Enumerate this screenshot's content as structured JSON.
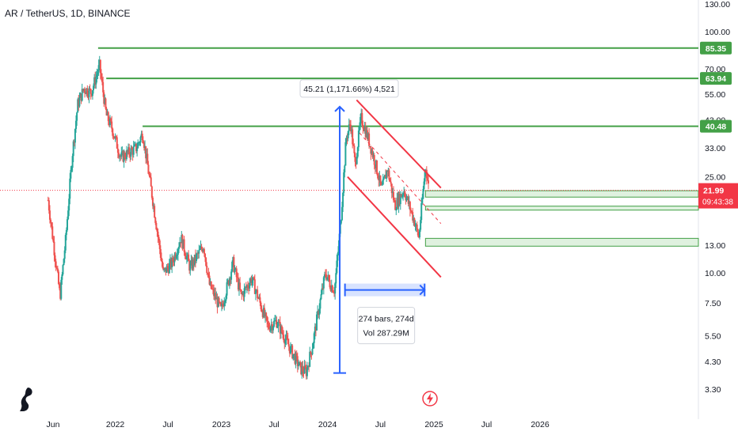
{
  "header": {
    "title": "AR / TetherUS, 1D, BINANCE"
  },
  "chart_data": {
    "type": "candlestick",
    "symbol": "AR / TetherUS",
    "interval": "1D",
    "exchange": "BINANCE",
    "y_scale": "log",
    "ylim": [
      3.0,
      135.0
    ],
    "y_ticks": [
      "130.00",
      "100.00",
      "70.00",
      "55.00",
      "43.00",
      "33.00",
      "25.00",
      "13.00",
      "10.00",
      "7.50",
      "5.50",
      "4.30",
      "3.30"
    ],
    "x_ticks": [
      "Jun",
      "2022",
      "Jul",
      "2023",
      "Jul",
      "2024",
      "Jul",
      "2025",
      "Jul",
      "2026"
    ],
    "current_price": {
      "value": "21.99",
      "countdown": "09:43:38",
      "color": "#f23645"
    },
    "horizontal_levels": [
      {
        "label": "85.35",
        "color": "#43a047"
      },
      {
        "label": "63.94",
        "color": "#43a047"
      },
      {
        "label": "40.48",
        "color": "#43a047"
      }
    ],
    "support_zones": [
      {
        "from": 20.6,
        "to": 21.9
      },
      {
        "from": 18.2,
        "to": 18.9
      },
      {
        "from": 12.9,
        "to": 13.9
      }
    ],
    "price_range_annotation": {
      "text": "45.21 (1,171.66%) 4,521"
    },
    "date_range_annotation": {
      "line1": "274 bars, 274d",
      "line2": "Vol 287.29M"
    },
    "colors": {
      "up": "#26a69a",
      "down": "#ef5350",
      "channel": "#f23645",
      "measure": "#2962ff",
      "level": "#43a047"
    },
    "path_points": [
      [
        "2021-05-15",
        20.0
      ],
      [
        "2021-06-05",
        12.5
      ],
      [
        "2021-06-25",
        8.0
      ],
      [
        "2021-07-15",
        14.0
      ],
      [
        "2021-08-05",
        30.0
      ],
      [
        "2021-08-25",
        50.0
      ],
      [
        "2021-09-15",
        58.0
      ],
      [
        "2021-10-10",
        56.0
      ],
      [
        "2021-11-08",
        72.0
      ],
      [
        "2021-12-01",
        45.0
      ],
      [
        "2021-12-20",
        40.0
      ],
      [
        "2022-01-20",
        30.0
      ],
      [
        "2022-03-15",
        33.0
      ],
      [
        "2022-04-05",
        38.0
      ],
      [
        "2022-05-10",
        20.0
      ],
      [
        "2022-06-15",
        10.0
      ],
      [
        "2022-07-15",
        11.0
      ],
      [
        "2022-08-15",
        14.0
      ],
      [
        "2022-09-15",
        10.5
      ],
      [
        "2022-11-01",
        13.0
      ],
      [
        "2022-11-20",
        9.0
      ],
      [
        "2022-12-31",
        7.0
      ],
      [
        "2023-02-10",
        11.0
      ],
      [
        "2023-03-10",
        8.0
      ],
      [
        "2023-04-15",
        9.5
      ],
      [
        "2023-06-10",
        6.0
      ],
      [
        "2023-07-10",
        6.3
      ],
      [
        "2023-08-20",
        5.0
      ],
      [
        "2023-10-01",
        4.0
      ],
      [
        "2023-10-20",
        3.9
      ],
      [
        "2023-11-10",
        5.0
      ],
      [
        "2023-12-01",
        7.0
      ],
      [
        "2023-12-25",
        10.0
      ],
      [
        "2024-01-10",
        9.0
      ],
      [
        "2024-01-25",
        8.5
      ],
      [
        "2024-02-15",
        16.0
      ],
      [
        "2024-03-05",
        36.0
      ],
      [
        "2024-03-20",
        42.0
      ],
      [
        "2024-04-05",
        28.0
      ],
      [
        "2024-04-25",
        44.0
      ],
      [
        "2024-05-20",
        36.0
      ],
      [
        "2024-06-15",
        28.0
      ],
      [
        "2024-07-05",
        22.0
      ],
      [
        "2024-07-25",
        27.0
      ],
      [
        "2024-08-20",
        19.0
      ],
      [
        "2024-09-20",
        22.0
      ],
      [
        "2024-10-25",
        16.5
      ],
      [
        "2024-11-10",
        14.0
      ],
      [
        "2024-12-03",
        28.0
      ],
      [
        "2024-12-15",
        22.0
      ]
    ]
  }
}
